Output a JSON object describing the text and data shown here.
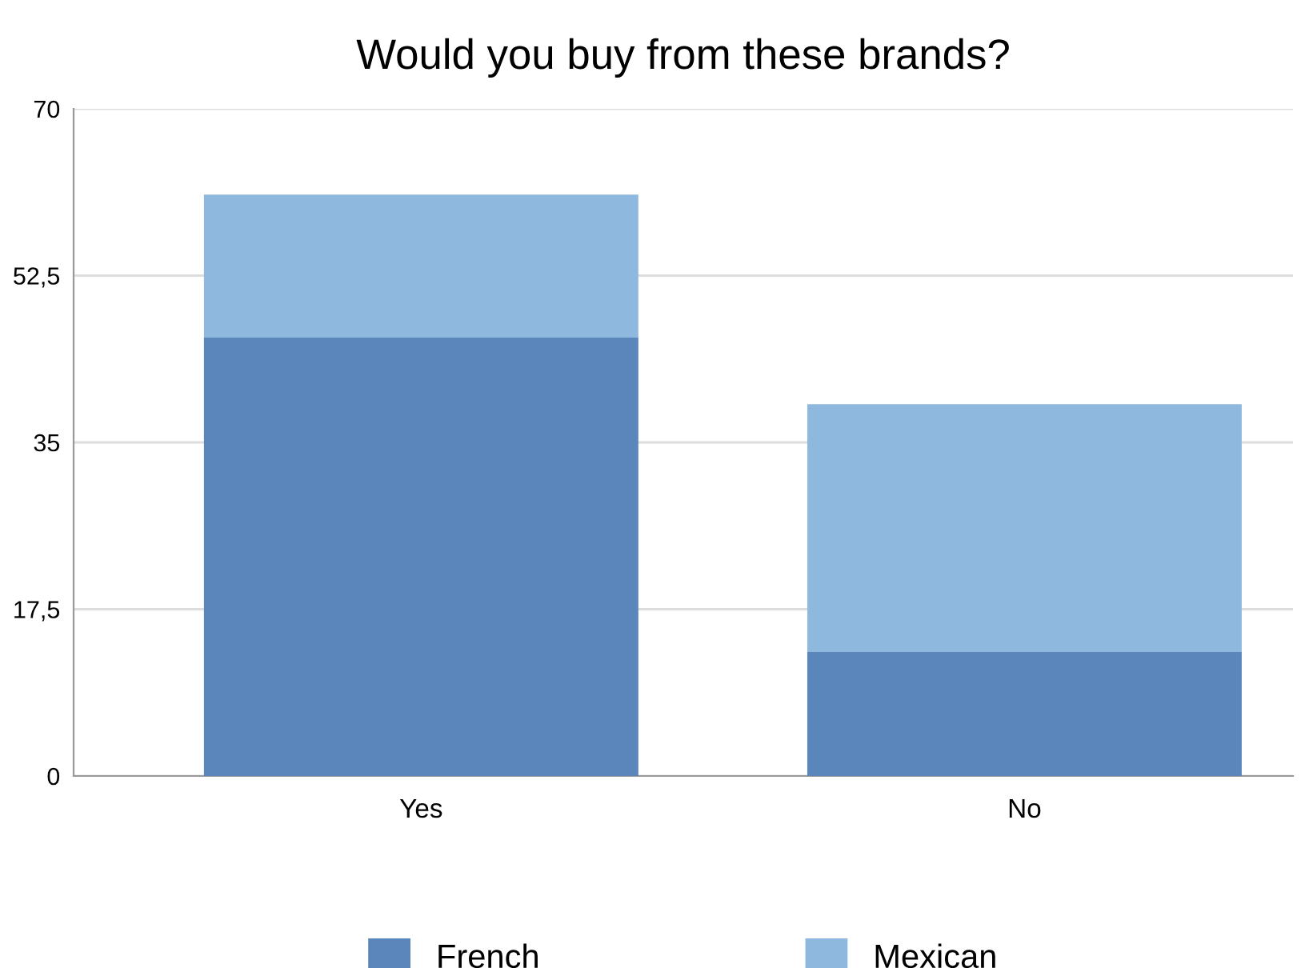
{
  "chart_data": {
    "type": "bar",
    "title": "Would you buy from these brands?",
    "categories": [
      "Yes",
      "No"
    ],
    "stacked": true,
    "series": [
      {
        "name": "French",
        "color": "#5a86bb",
        "values": [
          46,
          13
        ]
      },
      {
        "name": "Mexican",
        "color": "#8fb8de",
        "values": [
          15,
          26
        ]
      }
    ],
    "ylim": [
      0,
      70
    ],
    "yticks": [
      0,
      {
        "value": 17.5,
        "label": "17,5"
      },
      35,
      {
        "value": 52.5,
        "label": "52,5"
      },
      70
    ],
    "grid": "y",
    "legend": "bottom"
  }
}
